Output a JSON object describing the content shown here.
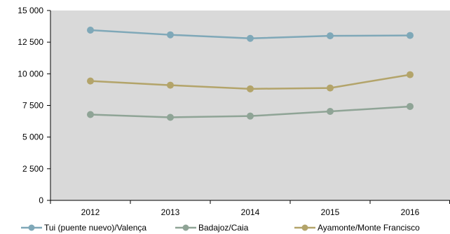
{
  "chart_data": {
    "type": "line",
    "categories": [
      "2012",
      "2013",
      "2014",
      "2015",
      "2016"
    ],
    "series": [
      {
        "name": "Tui (puente nuevo)/Valença",
        "values": [
          13450,
          13080,
          12800,
          13000,
          13030
        ],
        "color": "#7fa8b8"
      },
      {
        "name": "Badajoz/Caia",
        "values": [
          6780,
          6560,
          6660,
          7030,
          7420
        ],
        "color": "#8fa496"
      },
      {
        "name": "Ayamonte/Monte Francisco",
        "values": [
          9430,
          9100,
          8810,
          8880,
          9930
        ],
        "color": "#b3a46a"
      }
    ],
    "ylim": [
      0,
      15000
    ],
    "yticks": [
      0,
      2500,
      5000,
      7500,
      10000,
      12500,
      15000
    ],
    "ytick_labels": [
      "0",
      "2 500",
      "5 000",
      "7 500",
      "10 000",
      "12 500",
      "15 000"
    ],
    "grid": false,
    "legend": "bottom",
    "plot_background": "#d9d9d9"
  }
}
